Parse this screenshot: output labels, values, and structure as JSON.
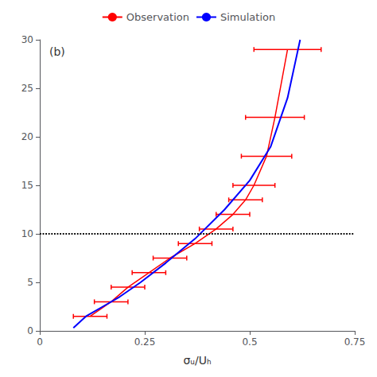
{
  "chart_data": {
    "type": "line",
    "xlabel": "σᵤ/Uₕ",
    "annotations": [
      {
        "text": "(b)"
      },
      {
        "type": "hline",
        "y": 10,
        "color": "#000000",
        "line_style": "dotted"
      }
    ],
    "series": [
      {
        "name": "Observation",
        "color": "#ff0000",
        "x": [
          0.12,
          0.17,
          0.21,
          0.26,
          0.31,
          0.37,
          0.42,
          0.46,
          0.49,
          0.51,
          0.54,
          0.56,
          0.59
        ],
        "values": [
          1.5,
          3.0,
          4.5,
          6.0,
          7.5,
          9.0,
          10.5,
          12.0,
          13.5,
          15.0,
          18.0,
          22.0,
          29.0
        ],
        "xerr": [
          0.04,
          0.04,
          0.04,
          0.04,
          0.04,
          0.04,
          0.04,
          0.04,
          0.04,
          0.05,
          0.06,
          0.07,
          0.08
        ]
      },
      {
        "name": "Simulation",
        "color": "#0000ff",
        "x": [
          0.08,
          0.11,
          0.15,
          0.19,
          0.24,
          0.3,
          0.37,
          0.44,
          0.5,
          0.55,
          0.59,
          0.61,
          0.62
        ],
        "values": [
          0.3,
          1.5,
          2.5,
          3.5,
          5.0,
          7.0,
          9.5,
          12.5,
          15.5,
          19.0,
          24.0,
          28.0,
          30.0
        ]
      }
    ],
    "xlim": [
      0,
      0.75
    ],
    "xticks": [
      0,
      0.25,
      0.5,
      0.75
    ],
    "ylim": [
      0,
      30
    ],
    "yticks": [
      0,
      5,
      10,
      15,
      20,
      25,
      30
    ],
    "grid": false,
    "legend": "top"
  }
}
